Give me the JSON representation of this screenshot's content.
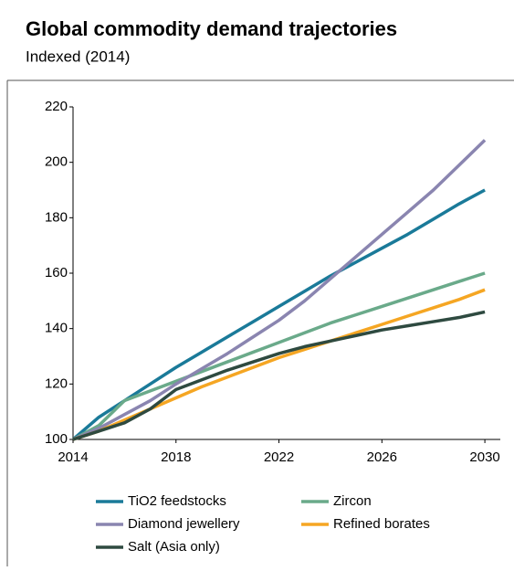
{
  "chart_data": {
    "type": "line",
    "title": "Global commodity demand trajectories",
    "subtitle": "Indexed (2014)",
    "x": [
      2014,
      2015,
      2016,
      2017,
      2018,
      2019,
      2020,
      2021,
      2022,
      2023,
      2024,
      2025,
      2026,
      2027,
      2028,
      2029,
      2030
    ],
    "series": [
      {
        "name": "TiO2 feedstocks",
        "color": "#1a7a99",
        "values": [
          100,
          108,
          114,
          120,
          126,
          131.5,
          137,
          142.5,
          148,
          153.5,
          159,
          164,
          169,
          174,
          179.5,
          185,
          190
        ]
      },
      {
        "name": "Zircon",
        "color": "#6aaa8a",
        "values": [
          100,
          105,
          114,
          117.5,
          121,
          124.5,
          128,
          131.5,
          135,
          138.5,
          142,
          145,
          148,
          151,
          154,
          157,
          160
        ]
      },
      {
        "name": "Diamond jewellery",
        "color": "#8a85b0",
        "values": [
          100,
          104,
          109,
          114,
          120,
          125.5,
          131,
          137,
          143,
          150,
          158,
          166,
          174,
          182,
          190,
          199,
          208
        ]
      },
      {
        "name": "Refined borates",
        "color": "#f5a623",
        "values": [
          100,
          103,
          107,
          111,
          115,
          119,
          122.5,
          126,
          129.5,
          132.5,
          135.5,
          138.5,
          141.5,
          144.5,
          147.5,
          150.5,
          154
        ]
      },
      {
        "name": "Salt (Asia only)",
        "color": "#2e4a40",
        "values": [
          100,
          103,
          106,
          111,
          118,
          121.5,
          125,
          128,
          131,
          133.5,
          135.5,
          137.5,
          139.5,
          141,
          142.5,
          144,
          146
        ]
      }
    ],
    "xlim": [
      2014,
      2030.6
    ],
    "xticks": [
      2014,
      2018,
      2022,
      2026,
      2030
    ],
    "ylim": [
      100,
      220
    ],
    "yticks": [
      100,
      120,
      140,
      160,
      180,
      200,
      220
    ],
    "grid": false
  }
}
